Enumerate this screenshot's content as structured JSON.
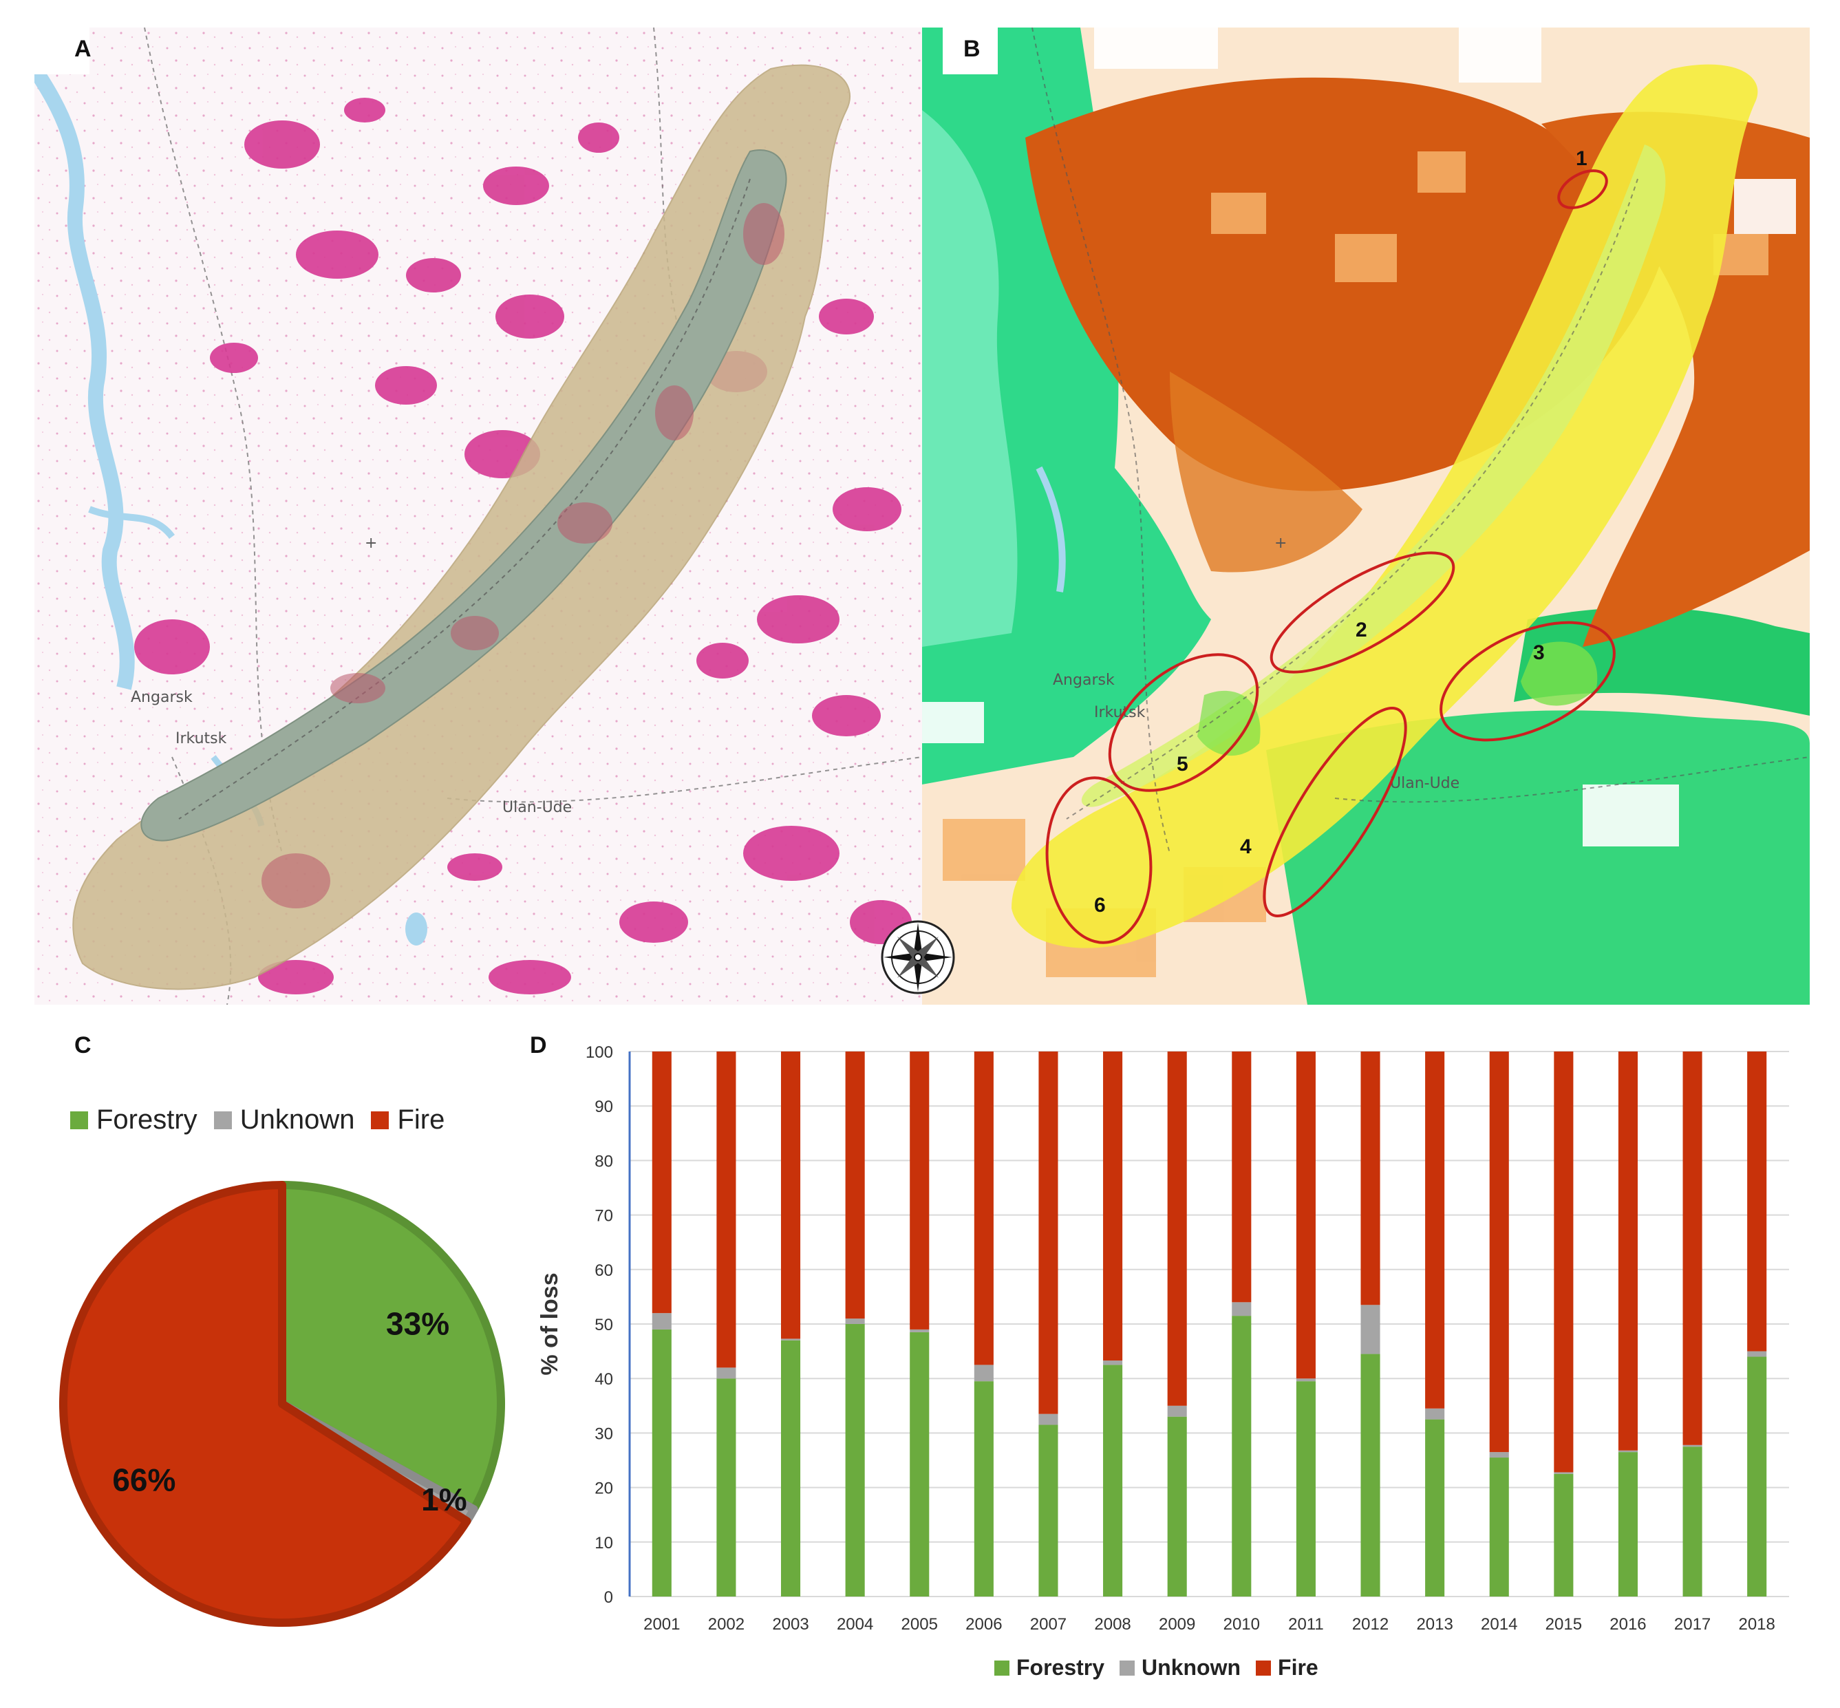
{
  "panels": {
    "a": {
      "letter": "A",
      "cities": {
        "angarsk": "Angarsk",
        "irkutsk": "Irkutsk",
        "ulan_ude": "Ulan-Ude"
      }
    },
    "b": {
      "letter": "B",
      "cities": {
        "angarsk": "Angarsk",
        "irkutsk": "Irkutsk",
        "ulan_ude": "Ulan-Ude"
      },
      "zones": [
        "1",
        "2",
        "3",
        "4",
        "5",
        "6"
      ]
    },
    "c": {
      "letter": "C"
    },
    "d": {
      "letter": "D"
    }
  },
  "colors": {
    "forestry": "#6bab3e",
    "unknown": "#a5a5a5",
    "fire": "#c8320a",
    "lake": "#9aab9c",
    "buffer": "#cbb88e",
    "loss": "#d63a93",
    "river": "#a8d6ee",
    "zone_outline": "#cc1f1f"
  },
  "icons": [
    "compass-rose-icon"
  ],
  "chart_data": [
    {
      "type": "pie",
      "legend_position": "top",
      "labels": [
        "Forestry",
        "Unknown",
        "Fire"
      ],
      "values": [
        33,
        1,
        66
      ],
      "value_labels": [
        "33%",
        "1%",
        "66%"
      ]
    },
    {
      "type": "bar",
      "stacked": true,
      "ylabel": "% of loss",
      "ylim": [
        0,
        100
      ],
      "yticks": [
        "0",
        "10",
        "20",
        "30",
        "40",
        "50",
        "60",
        "70",
        "80",
        "90",
        "100"
      ],
      "grid": true,
      "legend_position": "bottom",
      "categories": [
        "2001",
        "2002",
        "2003",
        "2004",
        "2005",
        "2006",
        "2007",
        "2008",
        "2009",
        "2010",
        "2011",
        "2012",
        "2013",
        "2014",
        "2015",
        "2016",
        "2017",
        "2018"
      ],
      "series": [
        {
          "name": "Forestry",
          "values": [
            49,
            40,
            47,
            50,
            48.5,
            39.5,
            31.5,
            42.5,
            33,
            51.5,
            39.5,
            44.5,
            32.5,
            25.5,
            22.5,
            26.5,
            27.5,
            44
          ]
        },
        {
          "name": "Unknown",
          "values": [
            3,
            2,
            0.3,
            1,
            0.5,
            3,
            2,
            0.8,
            2,
            2.5,
            0.5,
            9,
            2,
            1,
            0.3,
            0.3,
            0.3,
            1
          ]
        },
        {
          "name": "Fire",
          "values": [
            48,
            58,
            52.7,
            49,
            51,
            57.5,
            66.5,
            56.7,
            65,
            46,
            60,
            46.5,
            65.5,
            73.5,
            77.2,
            73.2,
            72.2,
            55
          ]
        }
      ]
    }
  ]
}
